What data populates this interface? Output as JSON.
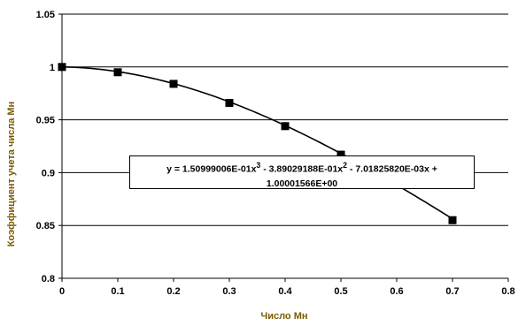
{
  "chart_data": {
    "type": "scatter",
    "xlabel": "Число Мн",
    "ylabel": "Коэффициент учета числа Мн",
    "xlim": [
      0,
      0.8
    ],
    "ylim": [
      0.8,
      1.05
    ],
    "x_ticks": [
      "0",
      "0.1",
      "0.2",
      "0.3",
      "0.4",
      "0.5",
      "0.6",
      "0.7",
      "0.8"
    ],
    "y_ticks": [
      "0.8",
      "0.85",
      "0.9",
      "0.95",
      "1",
      "1.05"
    ],
    "grid": "horizontal",
    "series": [
      {
        "marker": "square",
        "color": "#000000",
        "x": [
          0,
          0.1,
          0.2,
          0.3,
          0.4,
          0.5,
          0.7
        ],
        "y": [
          1.0,
          0.995,
          0.984,
          0.966,
          0.944,
          0.917,
          0.855
        ]
      }
    ],
    "trendline": {
      "type": "polynomial",
      "coefficients": {
        "a3": 0.150999006,
        "a2": -0.389029188,
        "a1": -0.0070182582,
        "a0": 1.00001566
      },
      "x_range": [
        0,
        0.7
      ],
      "equation_line1": "y = 1.50999006E-01x",
      "equation_sup1": "3",
      "equation_mid1": " - 3.89029188E-01x",
      "equation_sup2": "2",
      "equation_end1": " - 7.01825820E-03x +",
      "equation_line2": "1.00001566E+00"
    }
  }
}
